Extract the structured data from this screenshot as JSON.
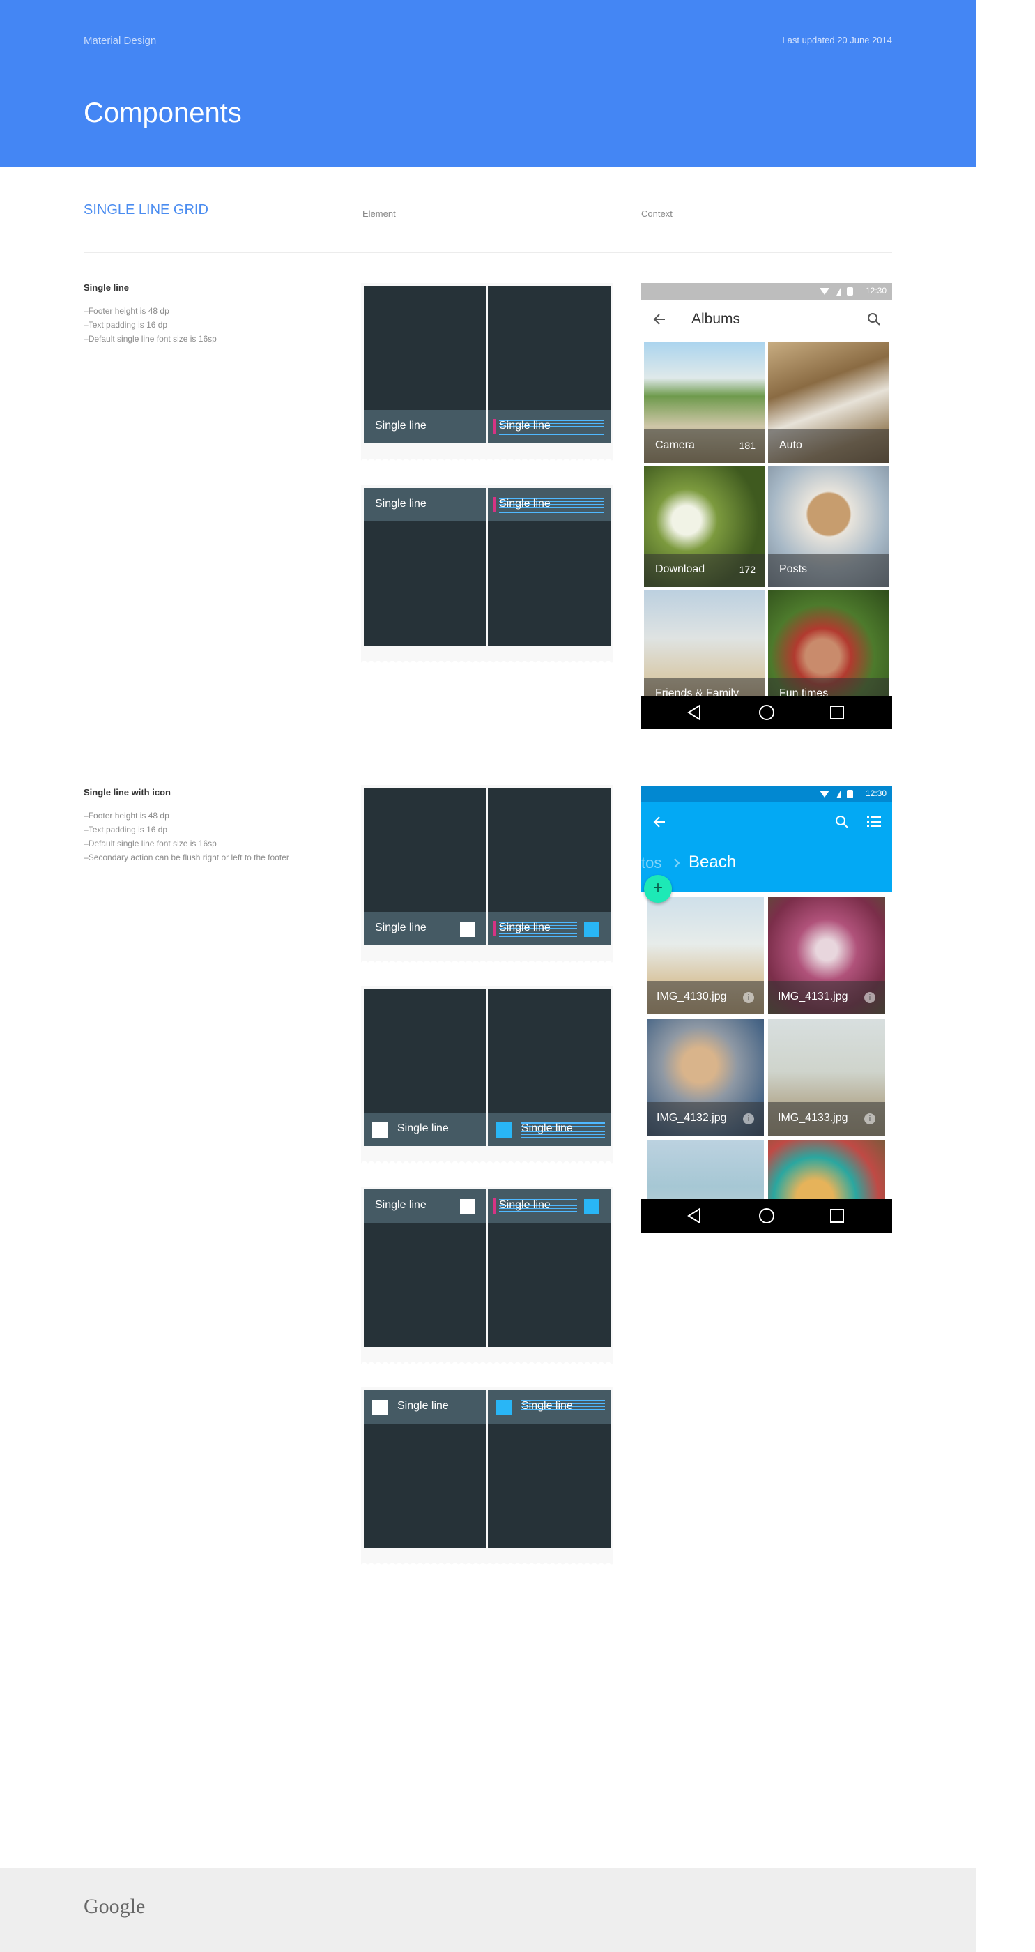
{
  "header": {
    "brand": "Material Design",
    "updated": "Last updated 20 June 2014",
    "title": "Components"
  },
  "section": {
    "title": "SINGLE LINE GRID",
    "col_element": "Element",
    "col_context": "Context"
  },
  "single_line": {
    "title": "Single line",
    "notes": [
      "Footer height is 48 dp",
      "Text padding is 16 dp",
      "Default single line font size is 16sp"
    ]
  },
  "single_line_icon": {
    "title": "Single line with icon",
    "notes": [
      "Footer height is 48 dp",
      "Text padding is 16 dp",
      "Default single line font size is 16sp",
      "Secondary action can be flush right or left to the footer"
    ]
  },
  "tile_label": "Single line",
  "albums_phone": {
    "time": "12:30",
    "title": "Albums",
    "tiles": [
      {
        "name": "Camera",
        "count": "181"
      },
      {
        "name": "Auto",
        "count": ""
      },
      {
        "name": "Download",
        "count": "172"
      },
      {
        "name": "Posts",
        "count": ""
      },
      {
        "name": "Friends & Family",
        "count": ""
      },
      {
        "name": "Fun times",
        "count": ""
      }
    ]
  },
  "beach_phone": {
    "time": "12:30",
    "breadcrumb_prev": "tos",
    "title": "Beach",
    "fab": "+",
    "tiles": [
      {
        "name": "IMG_4130.jpg"
      },
      {
        "name": "IMG_4131.jpg"
      },
      {
        "name": "IMG_4132.jpg"
      },
      {
        "name": "IMG_4133.jpg"
      }
    ],
    "info_glyph": "i"
  },
  "colors": {
    "header": "#4486f4",
    "accent": "#4a8cf0",
    "tile": "#263238",
    "footer_bar": "#455a64",
    "app_bar": "#03a9f4",
    "fab": "#1de9b6"
  },
  "footer": {
    "logo": "Google"
  }
}
